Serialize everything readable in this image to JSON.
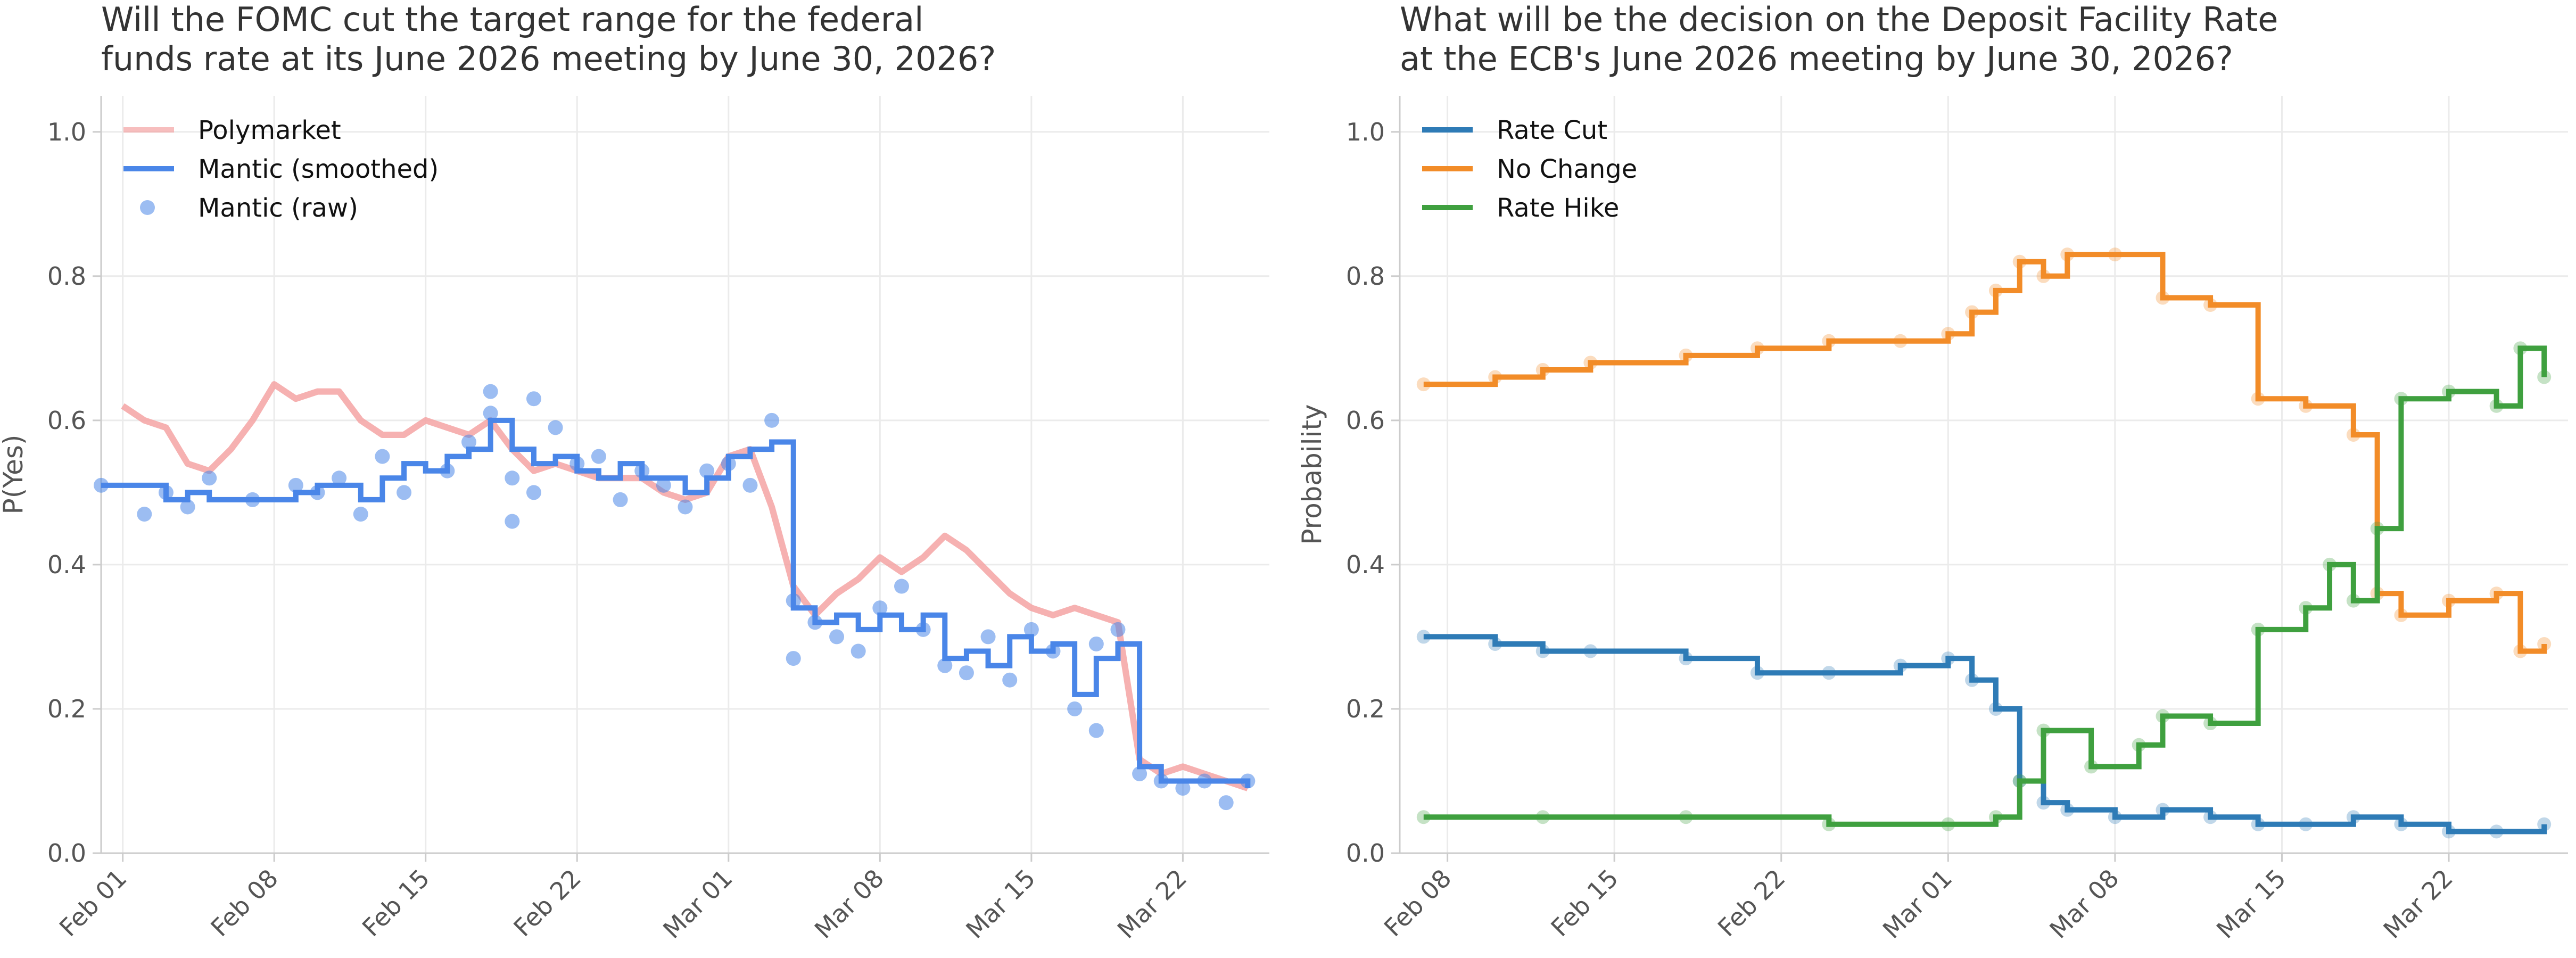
{
  "chart_data": [
    {
      "type": "line",
      "title": "Will the FOMC cut the target range for the federal\nfunds rate at its June 2026 meeting by June 30, 2026?",
      "xlabel": "",
      "ylabel": "P(Yes)",
      "x_ticks": [
        "Feb 01",
        "Feb 08",
        "Feb 15",
        "Feb 22",
        "Mar 01",
        "Mar 08",
        "Mar 15",
        "Mar 22"
      ],
      "y_ticks": [
        "0.0",
        "0.2",
        "0.4",
        "0.6",
        "0.8",
        "1.0"
      ],
      "xlim": [
        "2026-01-31",
        "2026-03-26"
      ],
      "ylim": [
        0,
        1.05
      ],
      "grid": true,
      "legend": "top-left",
      "series": [
        {
          "name": "Polymarket",
          "style": "line",
          "color": "#f4a3a3",
          "points": [
            [
              "2026-02-01",
              0.62
            ],
            [
              "2026-02-02",
              0.6
            ],
            [
              "2026-02-03",
              0.59
            ],
            [
              "2026-02-04",
              0.54
            ],
            [
              "2026-02-05",
              0.53
            ],
            [
              "2026-02-06",
              0.56
            ],
            [
              "2026-02-07",
              0.6
            ],
            [
              "2026-02-08",
              0.65
            ],
            [
              "2026-02-09",
              0.63
            ],
            [
              "2026-02-10",
              0.64
            ],
            [
              "2026-02-11",
              0.64
            ],
            [
              "2026-02-12",
              0.6
            ],
            [
              "2026-02-13",
              0.58
            ],
            [
              "2026-02-14",
              0.58
            ],
            [
              "2026-02-15",
              0.6
            ],
            [
              "2026-02-16",
              0.59
            ],
            [
              "2026-02-17",
              0.58
            ],
            [
              "2026-02-18",
              0.6
            ],
            [
              "2026-02-19",
              0.56
            ],
            [
              "2026-02-20",
              0.53
            ],
            [
              "2026-02-21",
              0.54
            ],
            [
              "2026-02-22",
              0.53
            ],
            [
              "2026-02-23",
              0.52
            ],
            [
              "2026-02-24",
              0.52
            ],
            [
              "2026-02-25",
              0.52
            ],
            [
              "2026-02-26",
              0.5
            ],
            [
              "2026-02-27",
              0.49
            ],
            [
              "2026-02-28",
              0.5
            ],
            [
              "2026-03-01",
              0.55
            ],
            [
              "2026-03-02",
              0.56
            ],
            [
              "2026-03-03",
              0.48
            ],
            [
              "2026-03-04",
              0.37
            ],
            [
              "2026-03-05",
              0.33
            ],
            [
              "2026-03-06",
              0.36
            ],
            [
              "2026-03-07",
              0.38
            ],
            [
              "2026-03-08",
              0.41
            ],
            [
              "2026-03-09",
              0.39
            ],
            [
              "2026-03-10",
              0.41
            ],
            [
              "2026-03-11",
              0.44
            ],
            [
              "2026-03-12",
              0.42
            ],
            [
              "2026-03-13",
              0.39
            ],
            [
              "2026-03-14",
              0.36
            ],
            [
              "2026-03-15",
              0.34
            ],
            [
              "2026-03-16",
              0.33
            ],
            [
              "2026-03-17",
              0.34
            ],
            [
              "2026-03-18",
              0.33
            ],
            [
              "2026-03-19",
              0.32
            ],
            [
              "2026-03-20",
              0.13
            ],
            [
              "2026-03-21",
              0.11
            ],
            [
              "2026-03-22",
              0.12
            ],
            [
              "2026-03-23",
              0.11
            ],
            [
              "2026-03-24",
              0.1
            ],
            [
              "2026-03-25",
              0.09
            ]
          ]
        },
        {
          "name": "Mantic (smoothed)",
          "style": "step",
          "color": "#4a86e8",
          "points": [
            [
              "2026-01-31",
              0.51
            ],
            [
              "2026-02-03",
              0.49
            ],
            [
              "2026-02-04",
              0.5
            ],
            [
              "2026-02-05",
              0.49
            ],
            [
              "2026-02-09",
              0.5
            ],
            [
              "2026-02-10",
              0.51
            ],
            [
              "2026-02-12",
              0.49
            ],
            [
              "2026-02-13",
              0.52
            ],
            [
              "2026-02-14",
              0.54
            ],
            [
              "2026-02-15",
              0.53
            ],
            [
              "2026-02-16",
              0.55
            ],
            [
              "2026-02-17",
              0.56
            ],
            [
              "2026-02-18",
              0.6
            ],
            [
              "2026-02-19",
              0.56
            ],
            [
              "2026-02-20",
              0.54
            ],
            [
              "2026-02-21",
              0.55
            ],
            [
              "2026-02-22",
              0.53
            ],
            [
              "2026-02-23",
              0.52
            ],
            [
              "2026-02-24",
              0.54
            ],
            [
              "2026-02-25",
              0.52
            ],
            [
              "2026-02-26",
              0.52
            ],
            [
              "2026-02-27",
              0.5
            ],
            [
              "2026-02-28",
              0.52
            ],
            [
              "2026-03-01",
              0.55
            ],
            [
              "2026-03-02",
              0.56
            ],
            [
              "2026-03-03",
              0.57
            ],
            [
              "2026-03-04",
              0.34
            ],
            [
              "2026-03-05",
              0.32
            ],
            [
              "2026-03-06",
              0.33
            ],
            [
              "2026-03-07",
              0.31
            ],
            [
              "2026-03-08",
              0.33
            ],
            [
              "2026-03-09",
              0.31
            ],
            [
              "2026-03-10",
              0.33
            ],
            [
              "2026-03-11",
              0.27
            ],
            [
              "2026-03-12",
              0.28
            ],
            [
              "2026-03-13",
              0.26
            ],
            [
              "2026-03-14",
              0.3
            ],
            [
              "2026-03-15",
              0.28
            ],
            [
              "2026-03-16",
              0.29
            ],
            [
              "2026-03-17",
              0.22
            ],
            [
              "2026-03-18",
              0.27
            ],
            [
              "2026-03-19",
              0.29
            ],
            [
              "2026-03-20",
              0.12
            ],
            [
              "2026-03-21",
              0.1
            ],
            [
              "2026-03-22",
              0.1
            ],
            [
              "2026-03-23",
              0.1
            ],
            [
              "2026-03-24",
              0.1
            ],
            [
              "2026-03-25",
              0.09
            ]
          ]
        },
        {
          "name": "Mantic (raw)",
          "style": "scatter",
          "color": "#4a86e8",
          "points": [
            [
              "2026-01-31",
              0.51
            ],
            [
              "2026-02-02",
              0.47
            ],
            [
              "2026-02-03",
              0.5
            ],
            [
              "2026-02-04",
              0.48
            ],
            [
              "2026-02-05",
              0.52
            ],
            [
              "2026-02-07",
              0.49
            ],
            [
              "2026-02-09",
              0.51
            ],
            [
              "2026-02-10",
              0.5
            ],
            [
              "2026-02-11",
              0.52
            ],
            [
              "2026-02-12",
              0.47
            ],
            [
              "2026-02-13",
              0.55
            ],
            [
              "2026-02-14",
              0.5
            ],
            [
              "2026-02-16",
              0.53
            ],
            [
              "2026-02-17",
              0.57
            ],
            [
              "2026-02-18",
              0.64
            ],
            [
              "2026-02-18",
              0.61
            ],
            [
              "2026-02-19",
              0.52
            ],
            [
              "2026-02-19",
              0.46
            ],
            [
              "2026-02-20",
              0.63
            ],
            [
              "2026-02-20",
              0.5
            ],
            [
              "2026-02-21",
              0.59
            ],
            [
              "2026-02-22",
              0.54
            ],
            [
              "2026-02-23",
              0.55
            ],
            [
              "2026-02-24",
              0.49
            ],
            [
              "2026-02-25",
              0.53
            ],
            [
              "2026-02-26",
              0.51
            ],
            [
              "2026-02-27",
              0.48
            ],
            [
              "2026-02-28",
              0.53
            ],
            [
              "2026-03-01",
              0.54
            ],
            [
              "2026-03-02",
              0.51
            ],
            [
              "2026-03-03",
              0.6
            ],
            [
              "2026-03-04",
              0.27
            ],
            [
              "2026-03-04",
              0.35
            ],
            [
              "2026-03-05",
              0.32
            ],
            [
              "2026-03-06",
              0.3
            ],
            [
              "2026-03-07",
              0.28
            ],
            [
              "2026-03-08",
              0.34
            ],
            [
              "2026-03-09",
              0.37
            ],
            [
              "2026-03-10",
              0.31
            ],
            [
              "2026-03-11",
              0.26
            ],
            [
              "2026-03-12",
              0.25
            ],
            [
              "2026-03-13",
              0.3
            ],
            [
              "2026-03-14",
              0.24
            ],
            [
              "2026-03-15",
              0.31
            ],
            [
              "2026-03-16",
              0.28
            ],
            [
              "2026-03-17",
              0.2
            ],
            [
              "2026-03-18",
              0.17
            ],
            [
              "2026-03-18",
              0.29
            ],
            [
              "2026-03-19",
              0.31
            ],
            [
              "2026-03-20",
              0.11
            ],
            [
              "2026-03-21",
              0.1
            ],
            [
              "2026-03-22",
              0.09
            ],
            [
              "2026-03-23",
              0.1
            ],
            [
              "2026-03-24",
              0.07
            ],
            [
              "2026-03-25",
              0.1
            ]
          ]
        }
      ]
    },
    {
      "type": "line",
      "title": "What will be the decision on the Deposit Facility Rate\nat the ECB's June 2026 meeting by June 30, 2026?",
      "xlabel": "",
      "ylabel": "Probability",
      "x_ticks": [
        "Feb 08",
        "Feb 15",
        "Feb 22",
        "Mar 01",
        "Mar 08",
        "Mar 15",
        "Mar 22"
      ],
      "y_ticks": [
        "0.0",
        "0.2",
        "0.4",
        "0.6",
        "0.8",
        "1.0"
      ],
      "xlim": [
        "2026-02-06",
        "2026-03-27"
      ],
      "ylim": [
        0,
        1.05
      ],
      "grid": true,
      "legend": "top-left",
      "series": [
        {
          "name": "Rate Cut",
          "style": "step",
          "color": "#2e7bb6",
          "points": [
            [
              "2026-02-07",
              0.3
            ],
            [
              "2026-02-10",
              0.29
            ],
            [
              "2026-02-12",
              0.28
            ],
            [
              "2026-02-14",
              0.28
            ],
            [
              "2026-02-18",
              0.27
            ],
            [
              "2026-02-21",
              0.25
            ],
            [
              "2026-02-24",
              0.25
            ],
            [
              "2026-02-27",
              0.26
            ],
            [
              "2026-03-01",
              0.27
            ],
            [
              "2026-03-02",
              0.24
            ],
            [
              "2026-03-03",
              0.2
            ],
            [
              "2026-03-04",
              0.1
            ],
            [
              "2026-03-05",
              0.07
            ],
            [
              "2026-03-06",
              0.06
            ],
            [
              "2026-03-08",
              0.05
            ],
            [
              "2026-03-10",
              0.06
            ],
            [
              "2026-03-12",
              0.05
            ],
            [
              "2026-03-14",
              0.04
            ],
            [
              "2026-03-16",
              0.04
            ],
            [
              "2026-03-18",
              0.05
            ],
            [
              "2026-03-20",
              0.04
            ],
            [
              "2026-03-22",
              0.03
            ],
            [
              "2026-03-24",
              0.03
            ],
            [
              "2026-03-26",
              0.04
            ]
          ]
        },
        {
          "name": "No Change",
          "style": "step",
          "color": "#f28c28",
          "points": [
            [
              "2026-02-07",
              0.65
            ],
            [
              "2026-02-10",
              0.66
            ],
            [
              "2026-02-12",
              0.67
            ],
            [
              "2026-02-14",
              0.68
            ],
            [
              "2026-02-18",
              0.69
            ],
            [
              "2026-02-21",
              0.7
            ],
            [
              "2026-02-24",
              0.71
            ],
            [
              "2026-02-27",
              0.71
            ],
            [
              "2026-03-01",
              0.72
            ],
            [
              "2026-03-02",
              0.75
            ],
            [
              "2026-03-03",
              0.78
            ],
            [
              "2026-03-04",
              0.82
            ],
            [
              "2026-03-05",
              0.8
            ],
            [
              "2026-03-06",
              0.83
            ],
            [
              "2026-03-08",
              0.83
            ],
            [
              "2026-03-10",
              0.77
            ],
            [
              "2026-03-12",
              0.76
            ],
            [
              "2026-03-14",
              0.63
            ],
            [
              "2026-03-16",
              0.62
            ],
            [
              "2026-03-18",
              0.58
            ],
            [
              "2026-03-19",
              0.36
            ],
            [
              "2026-03-20",
              0.33
            ],
            [
              "2026-03-22",
              0.35
            ],
            [
              "2026-03-24",
              0.36
            ],
            [
              "2026-03-25",
              0.28
            ],
            [
              "2026-03-26",
              0.29
            ]
          ]
        },
        {
          "name": "Rate Hike",
          "style": "step",
          "color": "#3fa03f",
          "points": [
            [
              "2026-02-07",
              0.05
            ],
            [
              "2026-02-12",
              0.05
            ],
            [
              "2026-02-18",
              0.05
            ],
            [
              "2026-02-24",
              0.04
            ],
            [
              "2026-03-01",
              0.04
            ],
            [
              "2026-03-03",
              0.05
            ],
            [
              "2026-03-04",
              0.1
            ],
            [
              "2026-03-05",
              0.17
            ],
            [
              "2026-03-07",
              0.12
            ],
            [
              "2026-03-09",
              0.15
            ],
            [
              "2026-03-10",
              0.19
            ],
            [
              "2026-03-12",
              0.18
            ],
            [
              "2026-03-14",
              0.31
            ],
            [
              "2026-03-16",
              0.34
            ],
            [
              "2026-03-17",
              0.4
            ],
            [
              "2026-03-18",
              0.35
            ],
            [
              "2026-03-19",
              0.45
            ],
            [
              "2026-03-20",
              0.63
            ],
            [
              "2026-03-22",
              0.64
            ],
            [
              "2026-03-24",
              0.62
            ],
            [
              "2026-03-25",
              0.7
            ],
            [
              "2026-03-26",
              0.66
            ]
          ]
        }
      ]
    }
  ]
}
